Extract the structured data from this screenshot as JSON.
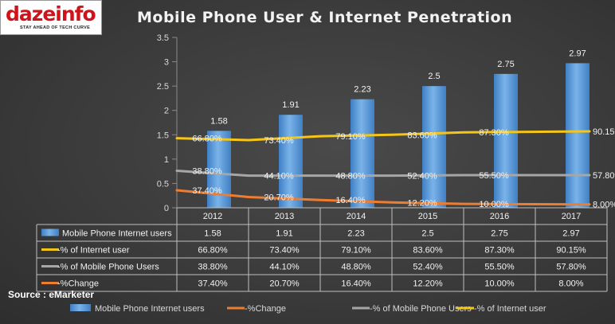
{
  "logo": {
    "word": "dazeinfo",
    "tagline": "STAY AHEAD OF TECH CURVE"
  },
  "source": "Source : eMarketer",
  "colors": {
    "bar": "#5b9bd5",
    "internet": "#f5c518",
    "mobile": "#a6a6a6",
    "change": "#ed7d31"
  },
  "chart_data": {
    "type": "bar",
    "title": "Mobile Phone User & Internet Penetration",
    "categories": [
      "2012",
      "2013",
      "2014",
      "2015",
      "2016",
      "2017"
    ],
    "ylim": [
      0,
      3.5
    ],
    "yticks": [
      "0",
      "0.5",
      "1",
      "1.5",
      "2",
      "2.5",
      "3",
      "3.5"
    ],
    "bars": {
      "name": "Mobile Phone Internet users",
      "values": [
        1.58,
        1.91,
        2.23,
        2.5,
        2.75,
        2.97
      ],
      "labels": [
        "1.58",
        "1.91",
        "2.23",
        "2.5",
        "2.75",
        "2.97"
      ]
    },
    "lines": [
      {
        "name": "% of Internet user",
        "table_name": "-% of Internet user",
        "color": "#f5c518",
        "values": [
          66.8,
          73.4,
          79.1,
          83.6,
          87.3,
          90.15
        ],
        "labels": [
          "66.80%",
          "73.40%",
          "79.10%",
          "83.60%",
          "87.30%",
          "90.15%"
        ]
      },
      {
        "name": "% of Mobile Phone Users",
        "table_name": "-% of Mobile Phone Users",
        "color": "#a6a6a6",
        "values": [
          38.8,
          44.1,
          48.8,
          52.4,
          55.5,
          57.8
        ],
        "labels": [
          "38.80%",
          "44.10%",
          "48.80%",
          "52.40%",
          "55.50%",
          "57.80%"
        ]
      },
      {
        "name": "%Change",
        "table_name": "-%Change",
        "color": "#ed7d31",
        "values": [
          37.4,
          20.7,
          16.4,
          12.2,
          10.0,
          8.0
        ],
        "labels": [
          "37.40%",
          "20.70%",
          "16.40%",
          "12.20%",
          "10.00%",
          "8.00%"
        ]
      }
    ],
    "line_plot_values": [
      [
        1.43,
        1.39,
        1.47,
        1.5,
        1.55,
        1.57
      ],
      [
        0.76,
        0.66,
        0.66,
        0.66,
        0.67,
        0.67
      ],
      [
        0.36,
        0.22,
        0.16,
        0.11,
        0.08,
        0.07
      ]
    ],
    "legend": {
      "position": "bottom",
      "items": [
        "Mobile Phone Internet users",
        "%Change",
        "% of Mobile Phone Users",
        "% of Internet user"
      ]
    }
  }
}
